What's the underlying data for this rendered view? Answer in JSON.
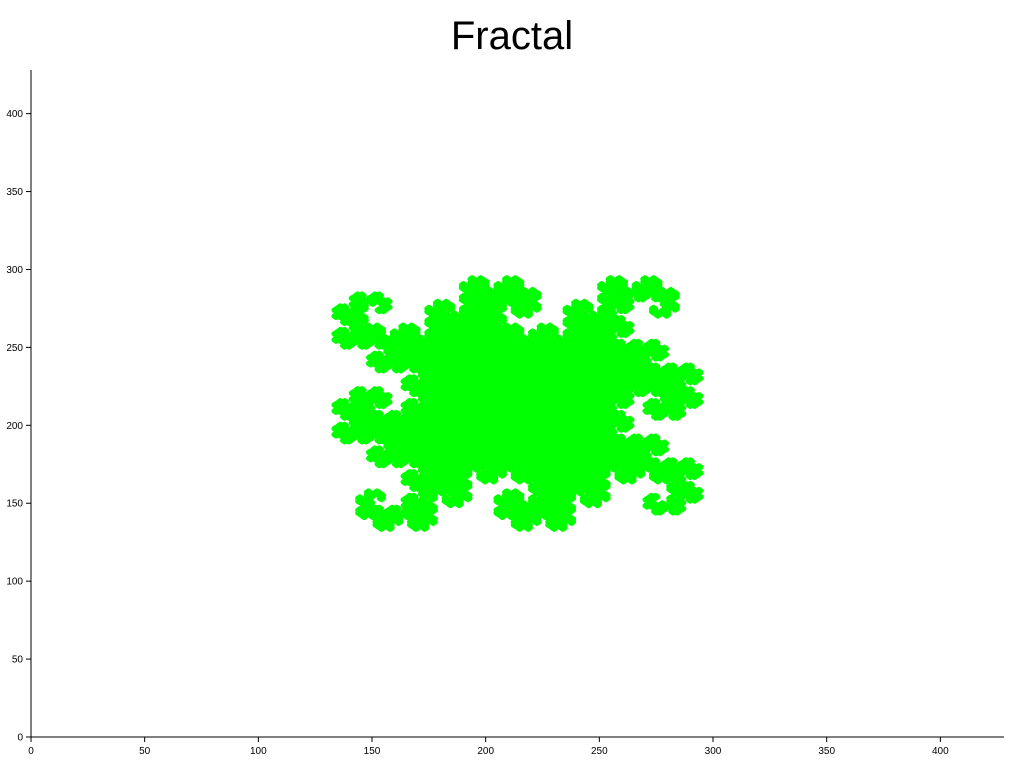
{
  "chart_data": {
    "type": "line",
    "title": "Fractal",
    "xlabel": "",
    "ylabel": "",
    "xlim": [
      0,
      428
    ],
    "ylim": [
      0,
      428
    ],
    "x_ticks": [
      0,
      50,
      100,
      150,
      200,
      250,
      300,
      350,
      400
    ],
    "y_ticks": [
      0,
      50,
      100,
      150,
      200,
      250,
      300,
      350,
      400
    ],
    "grid": false,
    "line_color": "#00ff00",
    "fractal": {
      "kind": "dragon-curve",
      "recursion_depth": 12,
      "copies": 4,
      "center": [
        214,
        214
      ],
      "first_copy_direction": [
        43,
        43
      ]
    }
  }
}
